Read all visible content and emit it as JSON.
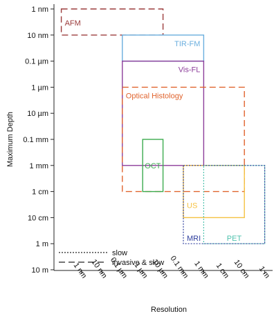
{
  "chart_data": {
    "type": "rectangle-range",
    "xlabel": "Resolution",
    "ylabel": "Maximum Depth",
    "y_ticks": [
      "1 nm",
      "10 nm",
      "0.1 µm",
      "1 µm",
      "10 µm",
      "0.1 mm",
      "1 mm",
      "1 cm",
      "10 cm",
      "1 m",
      "10 m"
    ],
    "x_ticks": [
      "1 nm",
      "10 nm",
      "0.1 µm",
      "1 µm",
      "10 µm",
      "0.1 mm",
      "1 mm",
      "1 cm",
      "10 cm",
      "1 m"
    ],
    "y_scale": "log",
    "x_scale": "log",
    "y_direction": "increasing downward",
    "grid": false,
    "boxes": [
      {
        "label": "AFM",
        "color": "#9b3b3b",
        "line": "dashed",
        "x_range": [
          "0.1 nm",
          "10 µm"
        ],
        "y_range": [
          "1 nm",
          "10 nm"
        ],
        "label_anchor": "left"
      },
      {
        "label": "TIR-FM",
        "color": "#6aaede",
        "line": "solid",
        "x_range": [
          "0.1 µm",
          "1 mm"
        ],
        "y_range": [
          "10 nm",
          "0.1 µm"
        ],
        "label_anchor": "right"
      },
      {
        "label": "Vis-FL",
        "color": "#8c3d9a",
        "line": "solid",
        "x_range": [
          "0.1 µm",
          "1 mm"
        ],
        "y_range": [
          "0.1 µm",
          "1 mm"
        ],
        "label_anchor": "right"
      },
      {
        "label": "Optical Histology",
        "color": "#e0632d",
        "line": "dashed",
        "x_range": [
          "0.1 µm",
          "10 cm"
        ],
        "y_range": [
          "1 µm",
          "1 cm"
        ],
        "label_anchor": "left"
      },
      {
        "label": "OCT",
        "color": "#3bab4e",
        "line": "solid",
        "x_range": [
          "1 µm",
          "10 µm"
        ],
        "y_range": [
          "0.1 mm",
          "1 cm"
        ],
        "label_anchor": "center"
      },
      {
        "label": "US",
        "color": "#f5c242",
        "line": "solid",
        "x_range": [
          "0.1 mm",
          "10 cm"
        ],
        "y_range": [
          "1 mm",
          "10 cm"
        ],
        "label_anchor": "left"
      },
      {
        "label": "PET",
        "color": "#4fc2ae",
        "line": "dotted",
        "x_range": [
          "1 mm",
          "1 m"
        ],
        "y_range": [
          "1 mm",
          "1 m"
        ],
        "label_anchor": "center"
      },
      {
        "label": "MRI",
        "color": "#2e3f9e",
        "line": "dotted",
        "x_range": [
          "0.1 mm",
          "1 m"
        ],
        "y_range": [
          "1 mm",
          "1 m"
        ],
        "label_anchor": "left"
      }
    ],
    "legend": {
      "placement": "bottom-left",
      "entries": [
        {
          "label": "slow",
          "line": "dotted"
        },
        {
          "label": "invasive & slow",
          "line": "dashed"
        }
      ]
    }
  }
}
